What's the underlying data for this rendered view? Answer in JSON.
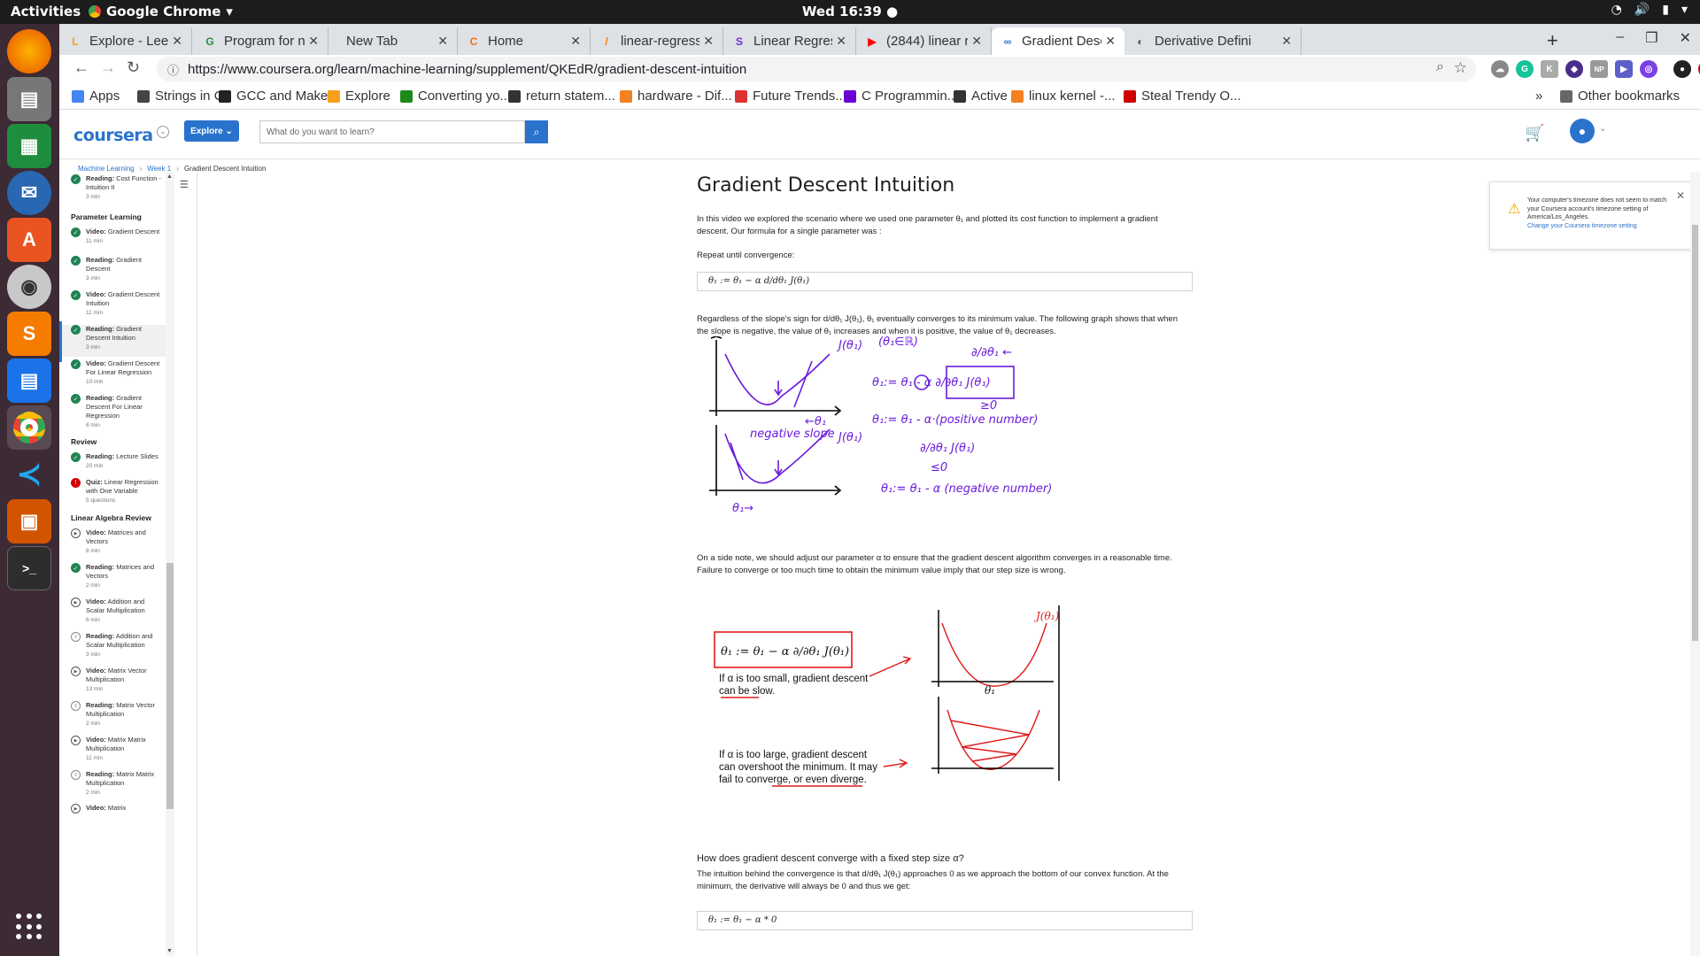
{
  "topbar": {
    "activities": "Activities",
    "app_menu": "Google Chrome",
    "clock": "Wed 16:39 ●"
  },
  "tabs": [
    {
      "label": "Explore - LeetCod",
      "color": "#f89f1b",
      "glyph": "L"
    },
    {
      "label": "Program for nth",
      "color": "#2f8d46",
      "glyph": "G"
    },
    {
      "label": "New Tab",
      "color": "",
      "glyph": ""
    },
    {
      "label": "Home",
      "color": "#ff6f00",
      "glyph": "C"
    },
    {
      "label": "linear-regression",
      "color": "#ff7a00",
      "glyph": "/"
    },
    {
      "label": "Linear Regression",
      "color": "#6e2fd3",
      "glyph": "S"
    },
    {
      "label": "(2844) linear regr",
      "color": "#ff0000",
      "glyph": "▶"
    },
    {
      "label": "Gradient Descent",
      "color": "#2a73cc",
      "glyph": "∞"
    },
    {
      "label": "Derivative Defini",
      "color": "#555555",
      "glyph": "◐"
    }
  ],
  "address": {
    "url": "https://www.coursera.org/learn/machine-learning/supplement/QKEdR/gradient-descent-intuition"
  },
  "bookmarks": [
    {
      "label": "Apps",
      "color": "#4285f4"
    },
    {
      "label": "Strings in C",
      "color": "#444444"
    },
    {
      "label": "GCC and Make...",
      "color": "#222222"
    },
    {
      "label": "Explore",
      "color": "#f89f1b"
    },
    {
      "label": "Converting yo...",
      "color": "#1b8a1b"
    },
    {
      "label": "return statem...",
      "color": "#333333"
    },
    {
      "label": "hardware - Dif...",
      "color": "#f48024"
    },
    {
      "label": "Future Trends...",
      "color": "#d33"
    },
    {
      "label": "C Programmin...",
      "color": "#6a00d4"
    },
    {
      "label": "Active",
      "color": "#333333"
    },
    {
      "label": "linux kernel -...",
      "color": "#f48024"
    },
    {
      "label": "Steal Trendy O...",
      "color": "#cc0000"
    }
  ],
  "other_bookmarks": "Other bookmarks",
  "coursera": {
    "logo": "coursera",
    "explore": "Explore",
    "search_placeholder": "What do you want to learn?"
  },
  "breadcrumb": {
    "course": "Machine Learning",
    "week": "Week 1",
    "current": "Gradient Descent Intuition"
  },
  "sidebar": {
    "items": [
      {
        "type": "Reading:",
        "title": "Cost Function - Intuition II",
        "duration": "3 min",
        "status": "done"
      },
      {
        "type": "Video:",
        "title": "Gradient Descent",
        "duration": "11 min",
        "status": "done"
      },
      {
        "type": "Reading:",
        "title": "Gradient Descent",
        "duration": "3 min",
        "status": "done"
      },
      {
        "type": "Video:",
        "title": "Gradient Descent Intuition",
        "duration": "11 min",
        "status": "done"
      },
      {
        "type": "Reading:",
        "title": "Gradient Descent Intuition",
        "duration": "3 min",
        "status": "done"
      },
      {
        "type": "Video:",
        "title": "Gradient Descent For Linear Regression",
        "duration": "10 min",
        "status": "done"
      },
      {
        "type": "Reading:",
        "title": "Gradient Descent For Linear Regression",
        "duration": "6 min",
        "status": "done"
      },
      {
        "type": "Reading:",
        "title": "Lecture Slides",
        "duration": "20 min",
        "status": "done"
      },
      {
        "type": "Quiz:",
        "title": "Linear Regression with One Variable",
        "duration": "5 questions",
        "status": "fail"
      },
      {
        "type": "Video:",
        "title": "Matrices and Vectors",
        "duration": "8 min",
        "status": "play"
      },
      {
        "type": "Reading:",
        "title": "Matrices and Vectors",
        "duration": "2 min",
        "status": "done"
      },
      {
        "type": "Video:",
        "title": "Addition and Scalar Multiplication",
        "duration": "6 min",
        "status": "play"
      },
      {
        "type": "Reading:",
        "title": "Addition and Scalar Multiplication",
        "duration": "3 min",
        "status": "read"
      },
      {
        "type": "Video:",
        "title": "Matrix Vector Multiplication",
        "duration": "13 min",
        "status": "play"
      },
      {
        "type": "Reading:",
        "title": "Matrix Vector Multiplication",
        "duration": "2 min",
        "status": "read"
      },
      {
        "type": "Video:",
        "title": "Matrix Matrix Multiplication",
        "duration": "11 min",
        "status": "play"
      },
      {
        "type": "Reading:",
        "title": "Matrix Matrix Multiplication",
        "duration": "2 min",
        "status": "read"
      },
      {
        "type": "Video:",
        "title": "Matrix",
        "duration": "",
        "status": "play"
      }
    ],
    "sections": [
      "Parameter Learning",
      "Review",
      "Linear Algebra Review"
    ]
  },
  "content": {
    "title": "Gradient Descent Intuition",
    "p1": "In this video we explored the scenario where we used one parameter θ₁ and plotted its cost function to implement a gradient descent. Our formula for a single parameter was :",
    "p2": "Repeat until convergence:",
    "formula1": "θ₁ := θ₁ − α d/dθ₁ J(θ₁)",
    "p3": "Regardless of the slope's sign for d/dθ₁ J(θ₁), θ₁ eventually converges to its minimum value. The following graph shows that when the slope is negative, the value of θ₁ increases and when it is positive, the value of θ₁ decreases.",
    "p4": "On a side note, we should adjust our parameter α to ensure that the gradient descent algorithm converges in a reasonable time. Failure to converge or too much time to obtain the minimum value imply that our step size is wrong.",
    "q": "How does gradient descent converge with a fixed step size α?",
    "p5": "The intuition behind the convergence is that d/dθ₁ J(θ₁) approaches 0 as we approach the bottom of our convex function. At the minimum, the derivative will always be 0 and thus we get:",
    "formula2": "θ₁ := θ₁ − α * 0"
  },
  "figure1": {
    "j_label": "J(θ₁)",
    "set_label": "(θ₁∈ℝ)",
    "deriv_label": "∂/∂θ₁ ←",
    "eq1": "θ₁:= θ₁ - α ∂/∂θ₁ J(θ₁)",
    "ge0": "≥0",
    "eq2": "θ₁:= θ₁ - α·(positive number)",
    "theta_arrow": "←θ₁",
    "neg_slope": "negative slope",
    "j2_label": "J(θ₁)",
    "deriv2": "∂/∂θ₁ J(θ₁)",
    "le0": "≤0",
    "eq3": "θ₁:= θ₁ - α (negative number)",
    "theta2": "θ₁→"
  },
  "figure2": {
    "box_eq": "θ₁ := θ₁ − α ∂/∂θ₁ J(θ₁)",
    "small_l1": "If α is too small, gradient descent",
    "small_l2": "can be slow.",
    "large_l1": "If α is too large, gradient descent",
    "large_l2": "can overshoot the minimum. It may",
    "large_l3": "fail to converge, or even diverge.",
    "j_label": "J(θ₁)",
    "x_label": "θ₁"
  },
  "timezone": {
    "message": "Your computer's timezone does not seem to match your Coursera account's timezone setting of America/Los_Angeles.",
    "link": "Change your Coursera timezone setting"
  },
  "colors": {
    "coursera_blue": "#2a73cc",
    "done_green": "#1f8354",
    "purple_ink": "#6a1bdc",
    "red_ink": "#e01a1a"
  }
}
